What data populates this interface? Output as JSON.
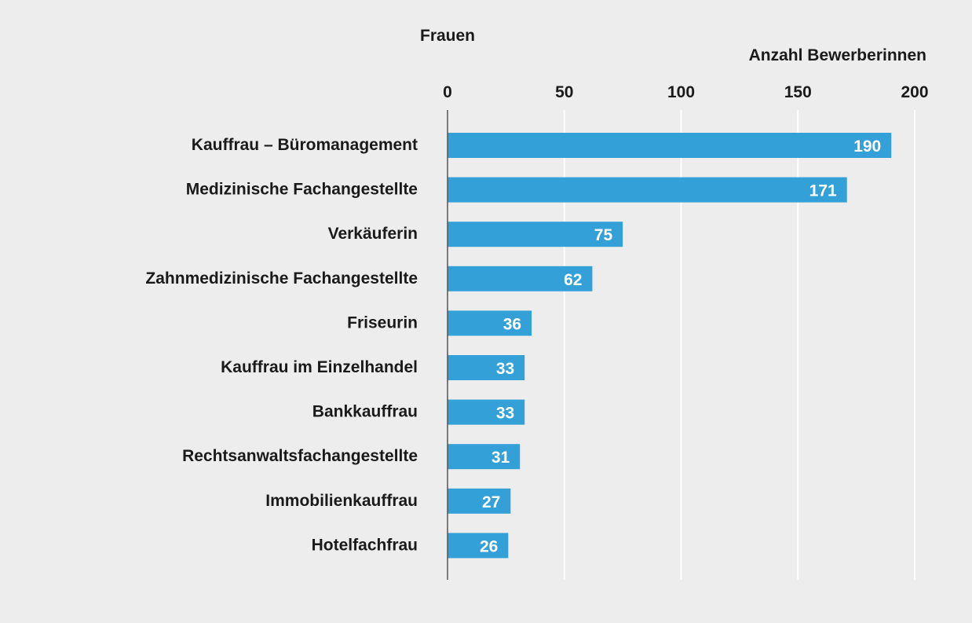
{
  "chart_data": {
    "type": "bar",
    "orientation": "horizontal",
    "title": "Frauen",
    "xlabel": "Anzahl Bewerberinnen",
    "categories": [
      "Kauffrau – Büromanagement",
      "Medizinische Fachangestellte",
      "Verkäuferin",
      "Zahnmedizinische Fachangestellte",
      "Friseurin",
      "Kauffrau im Einzelhandel",
      "Bankkauffrau",
      "Rechtsanwaltsfachangestellte",
      "Immobilienkauffrau",
      "Hotelfachfrau"
    ],
    "values": [
      190,
      171,
      75,
      62,
      36,
      33,
      33,
      31,
      27,
      26
    ],
    "xlim": [
      0,
      200
    ],
    "ticks": [
      0,
      50,
      100,
      150,
      200
    ],
    "grid": true,
    "data_labels": true,
    "colors": {
      "bar": "#33a0d8",
      "grid": "#ffffff",
      "axis": "#555555",
      "background": "#ecedec"
    }
  }
}
